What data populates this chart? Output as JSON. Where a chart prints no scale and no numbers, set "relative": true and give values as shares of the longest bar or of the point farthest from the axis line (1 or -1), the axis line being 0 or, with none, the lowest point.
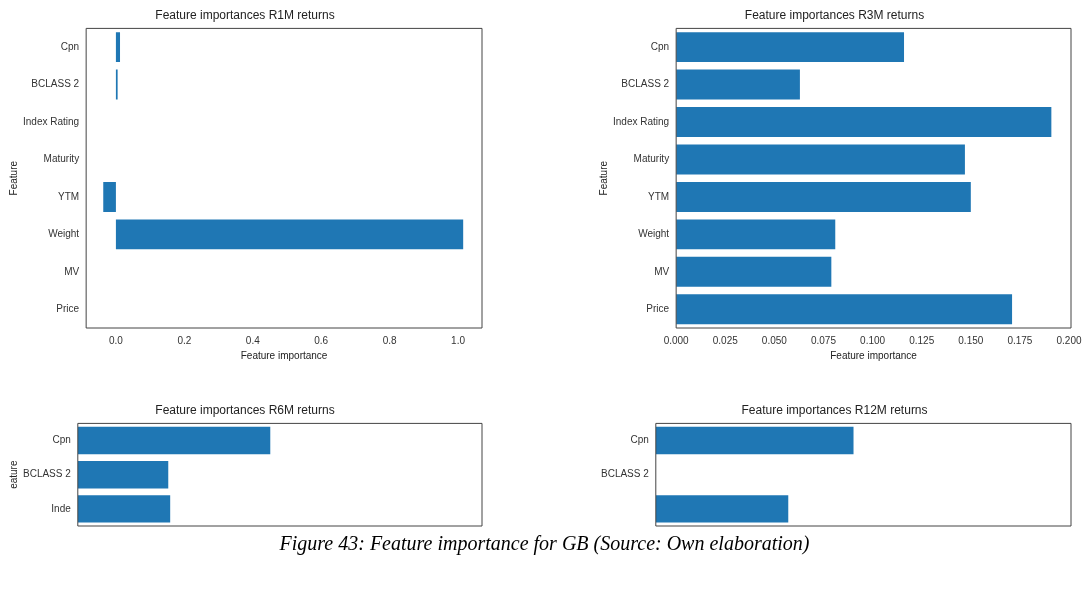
{
  "chart_data": [
    {
      "type": "bar",
      "orientation": "horizontal",
      "title": "Feature importances R1M returns",
      "xlabel": "Feature importance",
      "ylabel": "Feature",
      "categories": [
        "Cpn",
        "BCLASS 2",
        "Index Rating",
        "Maturity",
        "YTM",
        "Weight",
        "MV",
        "Price"
      ],
      "values": [
        0.012,
        0.005,
        0,
        0,
        -0.037,
        1.015,
        0,
        0
      ],
      "color": "#1f77b4",
      "xlim": [
        -0.087,
        1.07
      ],
      "xticks": [
        {
          "value": 0,
          "label": "0.0"
        },
        {
          "value": 0.2,
          "label": "0.2"
        },
        {
          "value": 0.4,
          "label": "0.4"
        },
        {
          "value": 0.6,
          "label": "0.6"
        },
        {
          "value": 0.8,
          "label": "0.8"
        },
        {
          "value": 1,
          "label": "1.0"
        }
      ],
      "grid": false,
      "legend": false
    },
    {
      "type": "bar",
      "orientation": "horizontal",
      "title": "Feature importances R3M returns",
      "xlabel": "Feature importance",
      "ylabel": "Feature",
      "categories": [
        "Cpn",
        "BCLASS 2",
        "Index Rating",
        "Maturity",
        "YTM",
        "Weight",
        "MV",
        "Price"
      ],
      "values": [
        0.116,
        0.063,
        0.191,
        0.147,
        0.15,
        0.081,
        0.079,
        0.171
      ],
      "color": "#1f77b4",
      "xlim": [
        0,
        0.201
      ],
      "xticks": [
        {
          "value": 0,
          "label": "0.000"
        },
        {
          "value": 0.025,
          "label": "0.025"
        },
        {
          "value": 0.05,
          "label": "0.050"
        },
        {
          "value": 0.075,
          "label": "0.075"
        },
        {
          "value": 0.1,
          "label": "0.100"
        },
        {
          "value": 0.125,
          "label": "0.125"
        },
        {
          "value": 0.15,
          "label": "0.150"
        },
        {
          "value": 0.175,
          "label": "0.175"
        },
        {
          "value": 0.2,
          "label": "0.200"
        }
      ],
      "grid": false,
      "legend": false
    },
    {
      "type": "bar",
      "orientation": "horizontal",
      "relative": true,
      "title": "Feature importances R6M returns",
      "ylabel": "eature",
      "tick_labels": "y",
      "categories": [
        "Cpn",
        "BCLASS 2",
        "Inde"
      ],
      "values": [
        1,
        0.47,
        0.48
      ],
      "color": "#1f77b4",
      "grid": false,
      "legend": false
    },
    {
      "type": "bar",
      "orientation": "horizontal",
      "relative": true,
      "title": "Feature importances R12M returns",
      "tick_labels": "y",
      "categories": [
        "Cpn",
        "BCLASS 2",
        null
      ],
      "values": [
        1,
        0,
        0.67
      ],
      "color": "#1f77b4",
      "grid": false,
      "legend": false,
      "annotations": [
        "Figure 43: Feature importance for GB (Source: Own elaboration)"
      ]
    }
  ]
}
